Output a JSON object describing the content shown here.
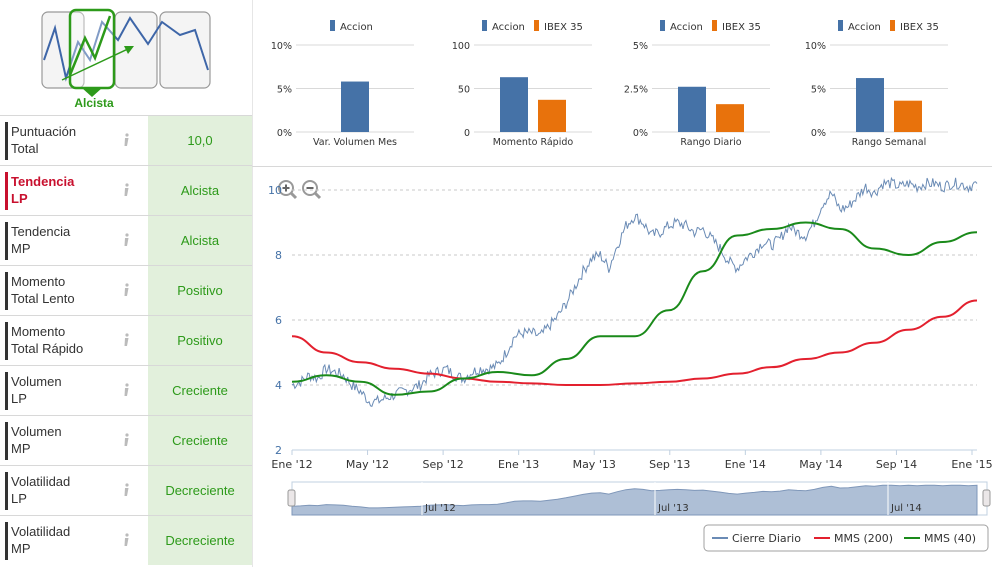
{
  "trend": {
    "label": "Alcista",
    "color": "#2d9a1a"
  },
  "rows": [
    {
      "label": "Puntuación\nTotal",
      "value": "10,0",
      "active": false
    },
    {
      "label": "Tendencia\nLP",
      "value": "Alcista",
      "active": true
    },
    {
      "label": "Tendencia\nMP",
      "value": "Alcista",
      "active": false
    },
    {
      "label": "Momento\nTotal Lento",
      "value": "Positivo",
      "active": false
    },
    {
      "label": "Momento\nTotal Rápido",
      "value": "Positivo",
      "active": false
    },
    {
      "label": "Volumen\nLP",
      "value": "Creciente",
      "active": false
    },
    {
      "label": "Volumen\nMP",
      "value": "Creciente",
      "active": false
    },
    {
      "label": "Volatilidad\nLP",
      "value": "Decreciente",
      "active": false
    },
    {
      "label": "Volatilidad\nMP",
      "value": "Decreciente",
      "active": false
    }
  ],
  "colors": {
    "accion": "#4572a7",
    "ibex": "#e8720c",
    "cierre": "#6a8bb5",
    "mms200": "#e3202e",
    "mms40": "#1a8a1a",
    "navigator_fill": "#aebfd6",
    "value_bg": "#e2f0dc"
  },
  "icons": {
    "info": "info-icon",
    "zoom_in": "zoom-in-icon",
    "zoom_out": "zoom-out-icon"
  },
  "chart_data": [
    {
      "type": "bar",
      "title": "Var. Volumen Mes",
      "series": [
        {
          "name": "Accion",
          "values": [
            5.8
          ]
        }
      ],
      "yticks": [
        "10%",
        "5%",
        "0%"
      ],
      "ylim": [
        0,
        10
      ]
    },
    {
      "type": "bar",
      "title": "Momento Rápido",
      "series": [
        {
          "name": "Accion",
          "values": [
            63
          ]
        },
        {
          "name": "IBEX 35",
          "values": [
            37
          ]
        }
      ],
      "yticks": [
        "100",
        "50",
        "0"
      ],
      "ylim": [
        0,
        100
      ]
    },
    {
      "type": "bar",
      "title": "Rango Diario",
      "series": [
        {
          "name": "Accion",
          "values": [
            2.6
          ]
        },
        {
          "name": "IBEX 35",
          "values": [
            1.6
          ]
        }
      ],
      "yticks": [
        "5%",
        "2.5%",
        "0%"
      ],
      "ylim": [
        0,
        5
      ]
    },
    {
      "type": "bar",
      "title": "Rango Semanal",
      "series": [
        {
          "name": "Accion",
          "values": [
            6.2
          ]
        },
        {
          "name": "IBEX 35",
          "values": [
            3.6
          ]
        }
      ],
      "yticks": [
        "10%",
        "5%",
        "0%"
      ],
      "ylim": [
        0,
        10
      ]
    },
    {
      "type": "line",
      "title": "",
      "x_labels": [
        "Ene '12",
        "May '12",
        "Sep '12",
        "Ene '13",
        "May '13",
        "Sep '13",
        "Ene '14",
        "May '14",
        "Sep '14",
        "Ene '15"
      ],
      "navigator_labels": [
        "Jul '12",
        "Jul '13",
        "Jul '14"
      ],
      "ylim": [
        2,
        10
      ],
      "yticks": [
        "2",
        "4",
        "6",
        "8",
        "10"
      ],
      "series": [
        {
          "name": "Cierre Diario",
          "x": [
            0,
            0.5,
            1,
            1.5,
            2,
            2.5,
            3,
            3.5,
            4,
            4.5,
            5,
            5.5,
            6,
            6.5,
            7,
            7.5,
            8,
            8.5,
            9,
            9.5,
            10,
            10.5,
            11,
            11.5,
            12,
            12.5,
            13,
            13.5,
            14,
            14.5,
            15,
            15.5,
            16,
            16.5,
            17,
            17.5,
            18,
            18.5,
            19,
            19.5,
            20,
            20.5,
            21,
            21.5,
            22,
            22.5,
            23,
            23.5,
            24,
            24.5,
            25,
            25.5,
            26,
            26.5,
            27,
            27.5,
            28,
            28.5,
            29,
            29.5,
            30,
            30.5,
            31,
            31.5,
            32,
            32.5,
            33,
            33.5,
            34,
            34.5,
            35,
            35.5,
            36,
            36.5,
            37,
            37.5,
            38,
            38.5,
            39,
            39.5,
            40
          ],
          "values": [
            4.0,
            4.1,
            4.3,
            4.2,
            4.5,
            4.4,
            4.3,
            4.0,
            3.8,
            3.5,
            3.5,
            3.6,
            3.7,
            3.8,
            3.9,
            4.0,
            4.3,
            4.4,
            4.5,
            4.3,
            4.2,
            4.4,
            4.5,
            4.5,
            4.6,
            5.0,
            5.5,
            5.6,
            5.6,
            5.5,
            5.8,
            6.1,
            6.5,
            7.0,
            7.5,
            7.9,
            8.0,
            7.6,
            8.3,
            8.9,
            9.2,
            9.0,
            8.6,
            8.7,
            8.9,
            9.0,
            8.9,
            8.7,
            8.8,
            8.5,
            8.2,
            7.8,
            7.6,
            7.9,
            8.1,
            8.4,
            8.3,
            8.5,
            8.9,
            8.7,
            8.6,
            9.0,
            9.6,
            9.9,
            9.4,
            9.5,
            9.8,
            10.1,
            9.9,
            10.2,
            10.2,
            10.1,
            10.2,
            10.1,
            10.2,
            10.2,
            10.1,
            10.2,
            10.2,
            10.1,
            10.2
          ]
        },
        {
          "name": "MMS (200)",
          "x": [
            0,
            2,
            4,
            6,
            8,
            10,
            12,
            14,
            16,
            18,
            20,
            22,
            24,
            26,
            28,
            30,
            32,
            34,
            36,
            38,
            40
          ],
          "values": [
            5.5,
            5.0,
            4.7,
            4.5,
            4.35,
            4.2,
            4.1,
            4.05,
            4.0,
            4.0,
            4.05,
            4.1,
            4.2,
            4.35,
            4.55,
            4.8,
            5.0,
            5.3,
            5.7,
            6.1,
            6.6
          ]
        },
        {
          "name": "MMS (40)",
          "x": [
            0,
            2,
            4,
            6,
            8,
            10,
            12,
            14,
            16,
            18,
            20,
            22,
            24,
            26,
            28,
            30,
            32,
            34,
            36,
            38,
            40
          ],
          "values": [
            4.1,
            4.3,
            4.1,
            3.7,
            3.8,
            4.2,
            4.4,
            4.3,
            4.8,
            5.5,
            5.5,
            6.3,
            7.5,
            8.6,
            8.8,
            9.0,
            8.8,
            8.2,
            8.0,
            8.4,
            8.7
          ]
        }
      ],
      "legend": [
        "Cierre Diario",
        "MMS (200)",
        "MMS (40)"
      ]
    }
  ]
}
